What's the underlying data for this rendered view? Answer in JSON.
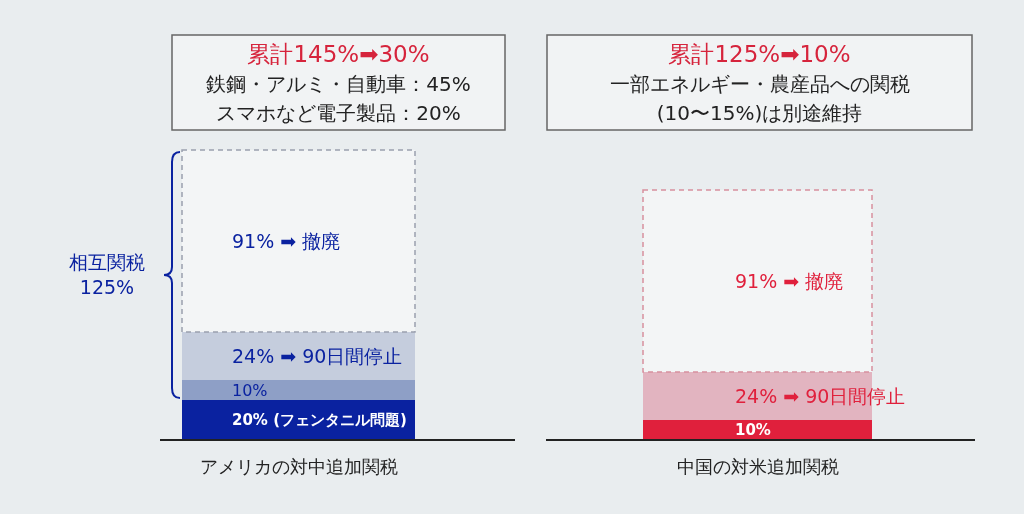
{
  "chart_data": [
    {
      "type": "bar",
      "stacked": true,
      "title": "累計145%➡30%",
      "annotations": [
        "鉄鋼・アルミ・自動車：45%",
        "スマホなど電子製品：20%",
        "相互関税\n125%"
      ],
      "xlabel": "アメリカの対中追加関税",
      "categories": [
        null
      ],
      "series": [
        {
          "color": "#0a22a0",
          "values": [
            20
          ],
          "value_labels": [
            "20% (フェンタニル問題)"
          ]
        },
        {
          "color": "#8e9fc6",
          "values": [
            10
          ],
          "value_labels": [
            "10%"
          ]
        },
        {
          "color": "#c5cddd",
          "values": [
            24
          ],
          "value_labels": [
            "24% ➡ 90日間停止"
          ]
        },
        {
          "color": "#9aa0ae",
          "values": [
            91
          ],
          "value_labels": [
            "91% ➡ 撤廃"
          ],
          "line_style": "dashed"
        }
      ]
    },
    {
      "type": "bar",
      "stacked": true,
      "title": "累計125%➡10%",
      "annotations": [
        "一部エネルギー・農産品への関税",
        "(10〜15%)は別途維持"
      ],
      "xlabel": "中国の対米追加関税",
      "categories": [
        null
      ],
      "series": [
        {
          "color": "#e0203c",
          "values": [
            10
          ],
          "value_labels": [
            "10%"
          ]
        },
        {
          "color": "#e2b4c0",
          "values": [
            24
          ],
          "value_labels": [
            "24% ➡ 90日間停止"
          ]
        },
        {
          "color": "#d8909e",
          "values": [
            91
          ],
          "value_labels": [
            "91% ➡ 撤廃"
          ],
          "line_style": "dashed"
        }
      ]
    }
  ]
}
